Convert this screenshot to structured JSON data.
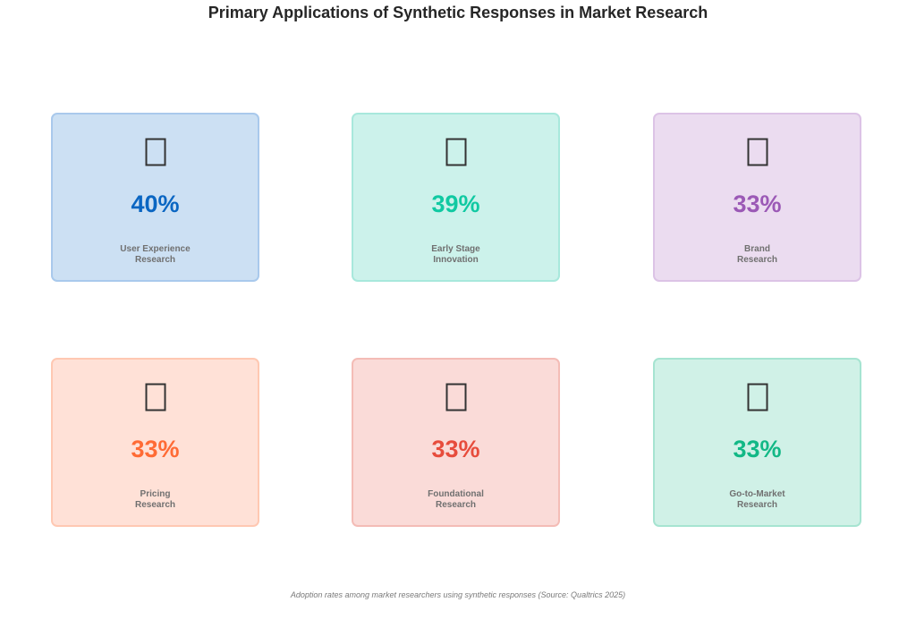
{
  "chart_data": {
    "type": "table",
    "title": "Primary Applications of Synthetic Responses in Market Research",
    "unit": "%",
    "caption": "Adoption rates among market researchers using synthetic responses (Source: Qualtrics 2025)",
    "categories": [
      "User Experience Research",
      "Early Stage Innovation",
      "Brand Research",
      "Pricing Research",
      "Foundational Research",
      "Go-to-Market Research"
    ],
    "values": [
      40,
      39,
      33,
      33,
      33,
      33
    ],
    "cards": [
      {
        "value": 40,
        "value_text": "40%",
        "label_lines": [
          "User Experience",
          "Research"
        ],
        "icon": "missing-glyph-icon",
        "color": "#0a66c2",
        "bg": "#cce0f3",
        "border": "#a9c9ec"
      },
      {
        "value": 39,
        "value_text": "39%",
        "label_lines": [
          "Early Stage",
          "Innovation"
        ],
        "icon": "missing-glyph-icon",
        "color": "#10c9a2",
        "bg": "#ccf2eb",
        "border": "#a8e8dc"
      },
      {
        "value": 33,
        "value_text": "33%",
        "label_lines": [
          "Brand",
          "Research"
        ],
        "icon": "missing-glyph-icon",
        "color": "#9b59b6",
        "bg": "#ebdcf0",
        "border": "#dcc3e6"
      },
      {
        "value": 33,
        "value_text": "33%",
        "label_lines": [
          "Pricing",
          "Research"
        ],
        "icon": "missing-glyph-icon",
        "color": "#ff6b35",
        "bg": "#ffe1d7",
        "border": "#ffc8b2"
      },
      {
        "value": 33,
        "value_text": "33%",
        "label_lines": [
          "Foundational",
          "Research"
        ],
        "icon": "missing-glyph-icon",
        "color": "#e74c3c",
        "bg": "#fadbd8",
        "border": "#f4bcb6"
      },
      {
        "value": 33,
        "value_text": "33%",
        "label_lines": [
          "Go-to-Market",
          "Research"
        ],
        "icon": "missing-glyph-icon",
        "color": "#12b886",
        "bg": "#d0f1e7",
        "border": "#a6e4d1"
      }
    ]
  }
}
